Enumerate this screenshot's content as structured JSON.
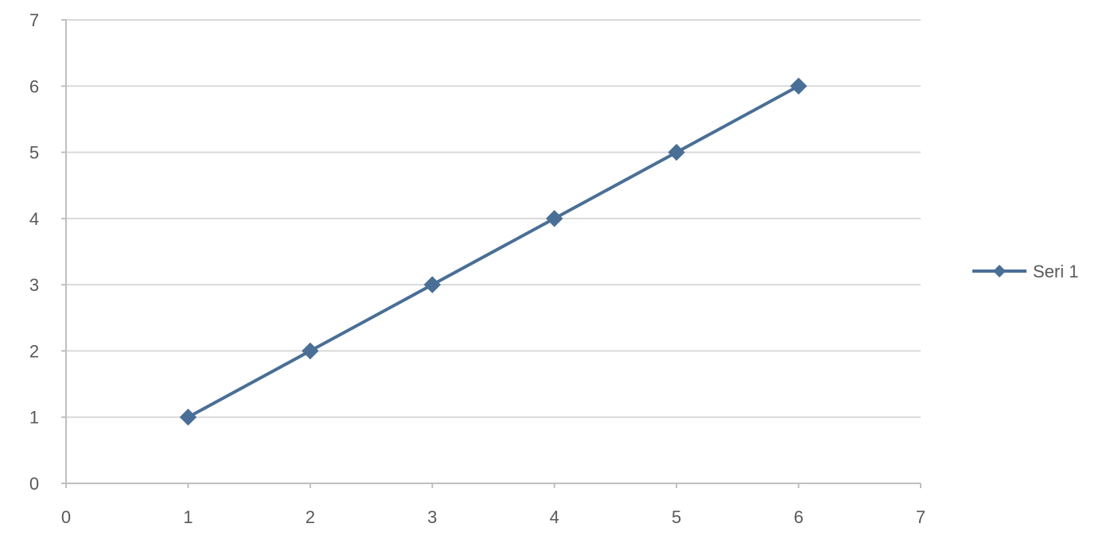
{
  "chart_data": {
    "type": "scatter",
    "title": "",
    "xlabel": "",
    "ylabel": "",
    "xlim": [
      0,
      7
    ],
    "ylim": [
      0,
      7
    ],
    "x_ticks": [
      0,
      1,
      2,
      3,
      4,
      5,
      6,
      7
    ],
    "y_ticks": [
      0,
      1,
      2,
      3,
      4,
      5,
      6,
      7
    ],
    "grid": "horizontal",
    "legend_position": "right",
    "series": [
      {
        "name": "Seri 1",
        "color": "#4a6f96",
        "marker": "diamond",
        "line": true,
        "points": [
          {
            "x": 1,
            "y": 1
          },
          {
            "x": 2,
            "y": 2
          },
          {
            "x": 3,
            "y": 3
          },
          {
            "x": 4,
            "y": 4
          },
          {
            "x": 5,
            "y": 5
          },
          {
            "x": 6,
            "y": 6
          }
        ]
      }
    ]
  },
  "colors": {
    "gridline": "#d9d9d9",
    "axis": "#bfbfbf",
    "tick_text": "#595959"
  }
}
